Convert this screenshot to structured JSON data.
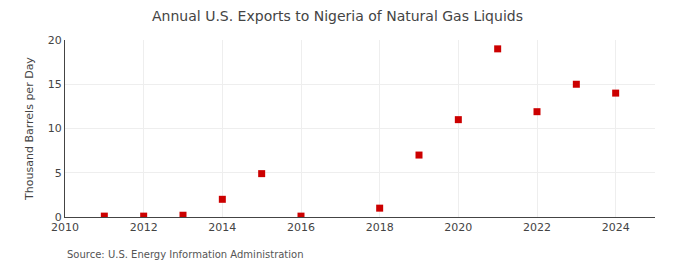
{
  "chart_data": {
    "type": "scatter",
    "title": "Annual U.S. Exports to Nigeria of Natural Gas Liquids",
    "ylabel": "Thousand Barrels per Day",
    "source": "Source: U.S. Energy Information Administration",
    "x": [
      2011,
      2012,
      2013,
      2014,
      2015,
      2016,
      2018,
      2019,
      2020,
      2021,
      2022,
      2023,
      2024
    ],
    "values": [
      0.1,
      0.1,
      0.2,
      2.0,
      4.9,
      0.1,
      1.0,
      7.0,
      11.0,
      19.0,
      11.9,
      15.0,
      14.0
    ],
    "color": "#cc0000",
    "marker": "square",
    "xlim": [
      2010,
      2025
    ],
    "ylim": [
      0,
      20
    ],
    "xticks": [
      2010,
      2012,
      2014,
      2016,
      2018,
      2020,
      2022,
      2024
    ],
    "yticks": [
      0,
      5,
      10,
      15,
      20
    ],
    "grid": true
  }
}
